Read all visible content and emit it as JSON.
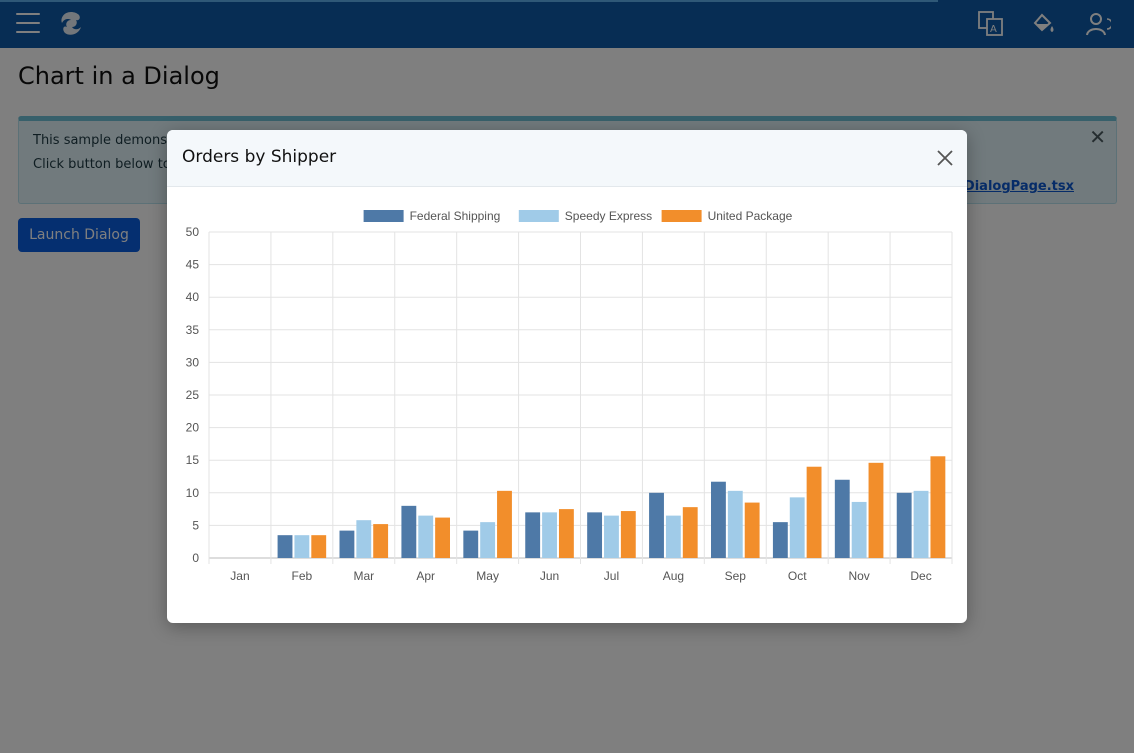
{
  "header": {
    "icons": [
      "menu-icon",
      "logo-icon",
      "translate-icon",
      "theme-paint-icon",
      "user-icon"
    ]
  },
  "page": {
    "title": "Chart in a Dialog",
    "info": {
      "line1": "This sample demons",
      "line2": "Click button below to",
      "link": "nDialogPage.tsx"
    },
    "launch_label": "Launch Dialog"
  },
  "dialog": {
    "title": "Orders by Shipper"
  },
  "colors": {
    "federal": "#4e79a7",
    "speedy": "#a0cbe8",
    "united": "#f28e2b"
  },
  "chart_data": {
    "type": "bar",
    "categories": [
      "Jan",
      "Feb",
      "Mar",
      "Apr",
      "May",
      "Jun",
      "Jul",
      "Aug",
      "Sep",
      "Oct",
      "Nov",
      "Dec"
    ],
    "series": [
      {
        "name": "Federal Shipping",
        "values": [
          0,
          3.5,
          4.2,
          8,
          4.2,
          7,
          7,
          10,
          11.7,
          5.5,
          12,
          10
        ]
      },
      {
        "name": "Speedy Express",
        "values": [
          0,
          3.5,
          5.8,
          6.5,
          5.5,
          7,
          6.5,
          6.5,
          10.3,
          9.3,
          8.6,
          10.3
        ]
      },
      {
        "name": "United Package",
        "values": [
          0,
          3.5,
          5.2,
          6.2,
          10.3,
          7.5,
          7.2,
          7.8,
          8.5,
          14,
          14.6,
          15.6
        ]
      }
    ],
    "yticks": [
      0,
      5,
      10,
      15,
      20,
      25,
      30,
      35,
      40,
      45,
      50
    ],
    "ylim": [
      0,
      50
    ],
    "legend": "top",
    "grid": true
  }
}
